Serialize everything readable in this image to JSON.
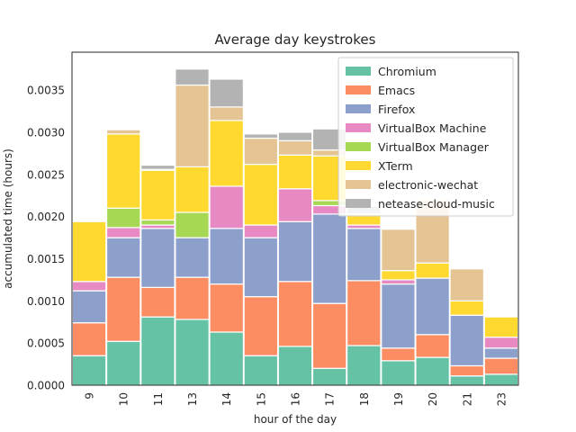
{
  "chart_data": {
    "type": "bar",
    "stacked": true,
    "title": "Average day keystrokes",
    "xlabel": "hour of the day",
    "ylabel": "accumulated time (hours)",
    "ylim": [
      0,
      0.00395
    ],
    "yticks": [
      "0.0000",
      "0.0005",
      "0.0010",
      "0.0015",
      "0.0020",
      "0.0025",
      "0.0030",
      "0.0035"
    ],
    "ytick_values": [
      0,
      0.0005,
      0.001,
      0.0015,
      0.002,
      0.0025,
      0.003,
      0.0035
    ],
    "grid": false,
    "legend_position": "top-right",
    "categories": [
      "9",
      "10",
      "11",
      "13",
      "14",
      "15",
      "16",
      "17",
      "18",
      "19",
      "20",
      "21",
      "23"
    ],
    "series": [
      {
        "name": "Chromium",
        "color": "#66c2a5",
        "values": [
          0.00035,
          0.00052,
          0.00081,
          0.00078,
          0.00063,
          0.00035,
          0.00046,
          0.0002,
          0.00047,
          0.00029,
          0.00033,
          0.00011,
          0.00013
        ]
      },
      {
        "name": "Emacs",
        "color": "#fc8d62",
        "values": [
          0.00039,
          0.00076,
          0.00035,
          0.0005,
          0.00057,
          0.0007,
          0.00077,
          0.00077,
          0.00077,
          0.00015,
          0.00027,
          0.00012,
          0.00019
        ]
      },
      {
        "name": "Firefox",
        "color": "#8da0cb",
        "values": [
          0.00038,
          0.00047,
          0.0007,
          0.00047,
          0.00066,
          0.0007,
          0.00071,
          0.00106,
          0.00062,
          0.00076,
          0.00067,
          0.0006,
          0.00012
        ]
      },
      {
        "name": "VirtualBox Machine",
        "color": "#e78ac3",
        "values": [
          0.00011,
          0.00012,
          4e-05,
          0,
          0.0005,
          0.00015,
          0.00039,
          0.0001,
          4e-05,
          5e-05,
          0,
          0,
          0.00013
        ]
      },
      {
        "name": "VirtualBox Manager",
        "color": "#a6d854",
        "values": [
          0,
          0.00023,
          6e-05,
          0.0003,
          0,
          0,
          0,
          6e-05,
          0,
          0,
          0,
          0,
          0
        ]
      },
      {
        "name": "XTerm",
        "color": "#ffd92f",
        "values": [
          0.00071,
          0.00088,
          0.00059,
          0.00054,
          0.00078,
          0.00072,
          0.0004,
          0.00053,
          0.00013,
          0.00011,
          0.00018,
          0.00017,
          0.00024
        ]
      },
      {
        "name": "electronic-wechat",
        "color": "#e5c494",
        "values": [
          0,
          5e-05,
          1e-05,
          0.00097,
          0.00016,
          0.00031,
          0.00017,
          7e-05,
          0,
          0.00049,
          0.00075,
          0.00038,
          0
        ]
      },
      {
        "name": "netease-cloud-music",
        "color": "#b3b3b3",
        "values": [
          0,
          0,
          5e-05,
          0.00019,
          0.00033,
          5e-05,
          0.0001,
          0.00025,
          9e-05,
          0,
          0,
          0,
          0
        ]
      }
    ]
  }
}
